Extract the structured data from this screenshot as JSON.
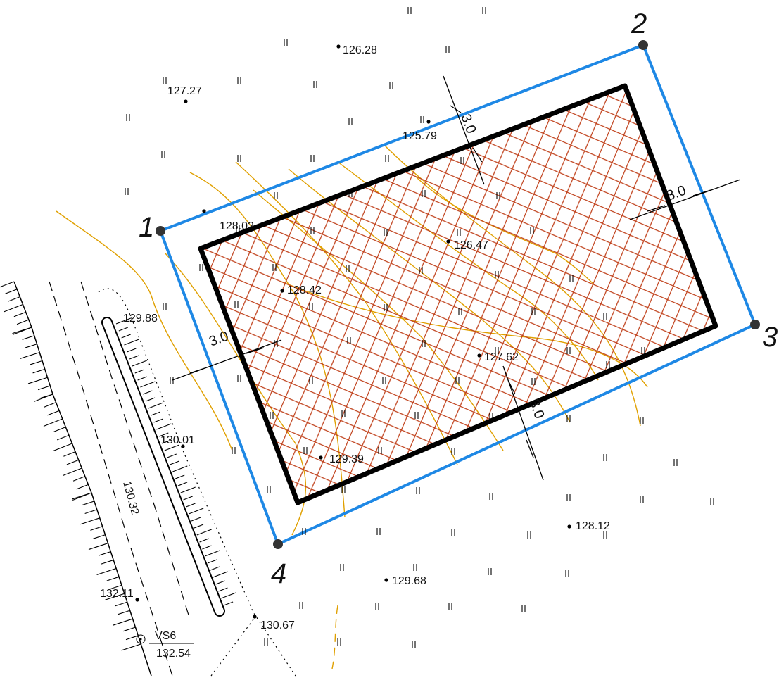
{
  "corners": [
    "1",
    "2",
    "3",
    "4"
  ],
  "dimensions": [
    "3.0",
    "3.0",
    "3.0",
    "3.0"
  ],
  "spot_heights": [
    "126.28",
    "127.27",
    "125.79",
    "128.02",
    "126.47",
    "128.42",
    "129.88",
    "127.62",
    "130.01",
    "130.32",
    "129.39",
    "128.12",
    "129.68",
    "132.11",
    "130.67"
  ],
  "well": {
    "name": "VS6",
    "elevation": "132.54"
  }
}
